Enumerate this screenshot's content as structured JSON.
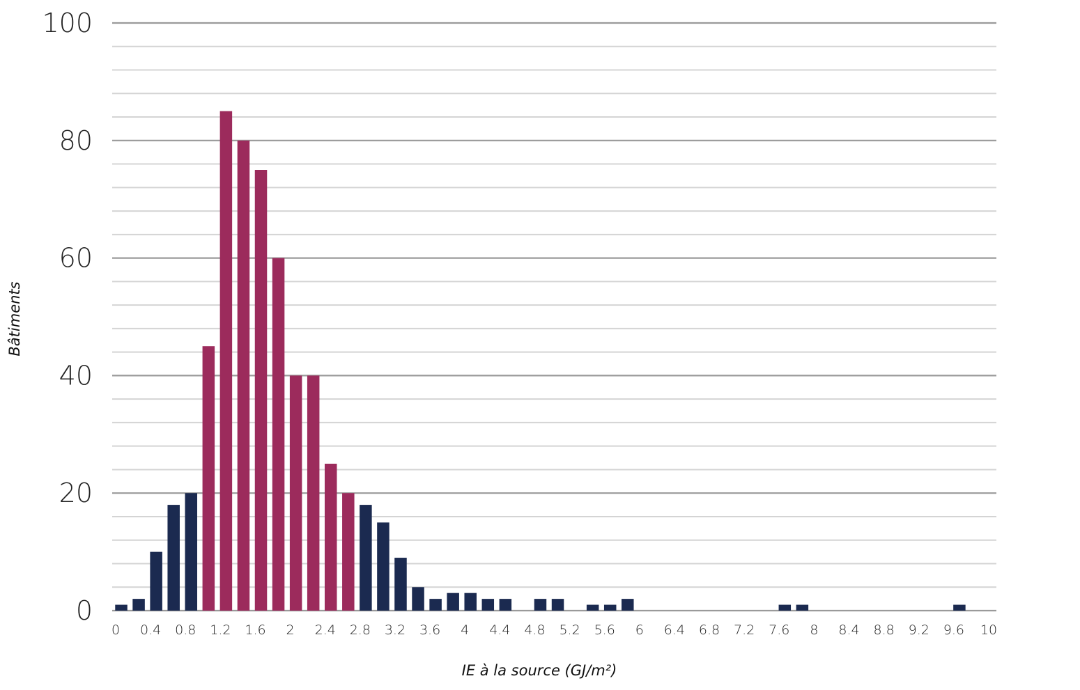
{
  "chart_data": {
    "type": "bar",
    "xlabel": "IE à la source (GJ/m²)",
    "ylabel": "Bâtiments",
    "ylim": [
      0,
      100
    ],
    "xlim": [
      0,
      10
    ],
    "bin_width": 0.2,
    "y_major_ticks": [
      "0",
      "20",
      "40",
      "60",
      "80",
      "100"
    ],
    "y_minor_step": 4,
    "x_tick_labels": [
      "0",
      "0.4",
      "0.8",
      "1.2",
      "1.6",
      "2",
      "2.4",
      "2.8",
      "3.2",
      "3.6",
      "4",
      "4.4",
      "4.8",
      "5.2",
      "5.6",
      "6",
      "6.4",
      "6.8",
      "7.2",
      "7.6",
      "8",
      "8.4",
      "8.8",
      "9.2",
      "9.6",
      "10"
    ],
    "grid": true,
    "colors": {
      "default": "#1b2a50",
      "highlight": "#9c2b5c",
      "major_grid": "#9a9a9a",
      "minor_grid": "#d4d4d4"
    },
    "bars": [
      {
        "x": 0.0,
        "value": 1,
        "highlight": false
      },
      {
        "x": 0.2,
        "value": 2,
        "highlight": false
      },
      {
        "x": 0.4,
        "value": 10,
        "highlight": false
      },
      {
        "x": 0.6,
        "value": 18,
        "highlight": false
      },
      {
        "x": 0.8,
        "value": 20,
        "highlight": false
      },
      {
        "x": 1.0,
        "value": 45,
        "highlight": true
      },
      {
        "x": 1.2,
        "value": 85,
        "highlight": true
      },
      {
        "x": 1.4,
        "value": 80,
        "highlight": true
      },
      {
        "x": 1.6,
        "value": 75,
        "highlight": true
      },
      {
        "x": 1.8,
        "value": 60,
        "highlight": true
      },
      {
        "x": 2.0,
        "value": 40,
        "highlight": true
      },
      {
        "x": 2.2,
        "value": 40,
        "highlight": true
      },
      {
        "x": 2.4,
        "value": 25,
        "highlight": true
      },
      {
        "x": 2.6,
        "value": 20,
        "highlight": true
      },
      {
        "x": 2.8,
        "value": 18,
        "highlight": false
      },
      {
        "x": 3.0,
        "value": 15,
        "highlight": false
      },
      {
        "x": 3.2,
        "value": 9,
        "highlight": false
      },
      {
        "x": 3.4,
        "value": 4,
        "highlight": false
      },
      {
        "x": 3.6,
        "value": 2,
        "highlight": false
      },
      {
        "x": 3.8,
        "value": 3,
        "highlight": false
      },
      {
        "x": 4.0,
        "value": 3,
        "highlight": false
      },
      {
        "x": 4.2,
        "value": 2,
        "highlight": false
      },
      {
        "x": 4.4,
        "value": 2,
        "highlight": false
      },
      {
        "x": 4.6,
        "value": 0,
        "highlight": false
      },
      {
        "x": 4.8,
        "value": 2,
        "highlight": false
      },
      {
        "x": 5.0,
        "value": 2,
        "highlight": false
      },
      {
        "x": 5.2,
        "value": 0,
        "highlight": false
      },
      {
        "x": 5.4,
        "value": 1,
        "highlight": false
      },
      {
        "x": 5.6,
        "value": 1,
        "highlight": false
      },
      {
        "x": 5.8,
        "value": 2,
        "highlight": false
      },
      {
        "x": 6.0,
        "value": 0,
        "highlight": false
      },
      {
        "x": 6.2,
        "value": 0,
        "highlight": false
      },
      {
        "x": 6.4,
        "value": 0,
        "highlight": false
      },
      {
        "x": 6.6,
        "value": 0,
        "highlight": false
      },
      {
        "x": 6.8,
        "value": 0,
        "highlight": false
      },
      {
        "x": 7.0,
        "value": 0,
        "highlight": false
      },
      {
        "x": 7.2,
        "value": 0,
        "highlight": false
      },
      {
        "x": 7.4,
        "value": 0,
        "highlight": false
      },
      {
        "x": 7.6,
        "value": 1,
        "highlight": false
      },
      {
        "x": 7.8,
        "value": 1,
        "highlight": false
      },
      {
        "x": 8.0,
        "value": 0,
        "highlight": false
      },
      {
        "x": 8.2,
        "value": 0,
        "highlight": false
      },
      {
        "x": 8.4,
        "value": 0,
        "highlight": false
      },
      {
        "x": 8.6,
        "value": 0,
        "highlight": false
      },
      {
        "x": 8.8,
        "value": 0,
        "highlight": false
      },
      {
        "x": 9.0,
        "value": 0,
        "highlight": false
      },
      {
        "x": 9.2,
        "value": 0,
        "highlight": false
      },
      {
        "x": 9.4,
        "value": 0,
        "highlight": false
      },
      {
        "x": 9.6,
        "value": 1,
        "highlight": false
      },
      {
        "x": 9.8,
        "value": 0,
        "highlight": false
      }
    ]
  }
}
